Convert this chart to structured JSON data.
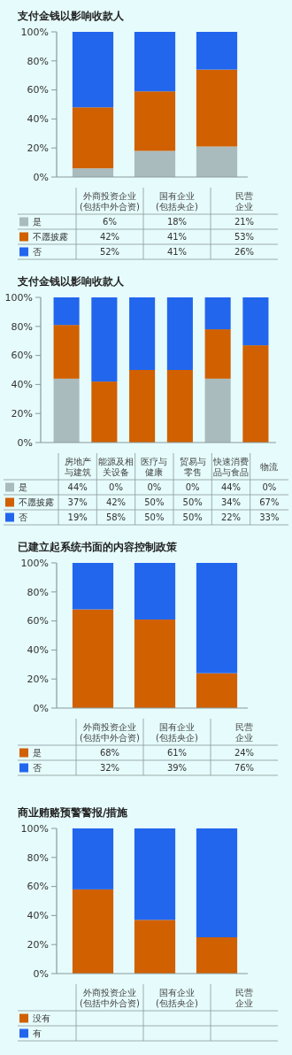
{
  "chart_data": [
    {
      "type": "bar",
      "stacked": true,
      "title": "支付金钱以影响收款人",
      "categories": [
        "外商投资企业\n(包括中外合资)",
        "国有企业\n(包括央企)",
        "民营企业"
      ],
      "ylim": [
        0,
        100
      ],
      "yticks": [
        {
          "value": 0,
          "label": "0%"
        },
        {
          "value": 20,
          "label": "20%"
        },
        {
          "value": 40,
          "label": "40%"
        },
        {
          "value": 60,
          "label": "60%"
        },
        {
          "value": 80,
          "label": "80%"
        },
        {
          "value": 100,
          "label": "100%"
        }
      ],
      "legend": "bottom",
      "series": [
        {
          "name": "是",
          "color": "#aabbbe",
          "values": [
            6,
            18,
            21
          ],
          "value_labels": [
            "6%",
            "18%",
            "21%"
          ]
        },
        {
          "name": "不愿披露",
          "color": "#d06000",
          "values": [
            42,
            41,
            53
          ],
          "value_labels": [
            "42%",
            "41%",
            "53%"
          ]
        },
        {
          "name": "否",
          "color": "#2266ee",
          "values": [
            52,
            41,
            26
          ],
          "value_labels": [
            "52%",
            "41%",
            "26%"
          ]
        }
      ]
    },
    {
      "type": "bar",
      "stacked": true,
      "title": "支付金钱以影响收款人",
      "categories": [
        "房地产与建筑",
        "能源及相关设备",
        "医疗与健康",
        "贸易与零售",
        "快速消费品与食品",
        "物流"
      ],
      "ylim": [
        0,
        100
      ],
      "yticks": [
        {
          "value": 0,
          "label": "0%"
        },
        {
          "value": 20,
          "label": "20%"
        },
        {
          "value": 40,
          "label": "40%"
        },
        {
          "value": 60,
          "label": "60%"
        },
        {
          "value": 80,
          "label": "80%"
        },
        {
          "value": 100,
          "label": "100%"
        }
      ],
      "legend": "bottom",
      "series": [
        {
          "name": "是",
          "color": "#aabbbe",
          "values": [
            44,
            0,
            0,
            0,
            44,
            0
          ],
          "value_labels": [
            "44%",
            "0%",
            "0%",
            "0%",
            "44%",
            "0%"
          ]
        },
        {
          "name": "不愿披露",
          "color": "#d06000",
          "values": [
            37,
            42,
            50,
            50,
            34,
            67
          ],
          "value_labels": [
            "37%",
            "42%",
            "50%",
            "50%",
            "34%",
            "67%"
          ]
        },
        {
          "name": "否",
          "color": "#2266ee",
          "values": [
            19,
            58,
            50,
            50,
            22,
            33
          ],
          "value_labels": [
            "19%",
            "58%",
            "50%",
            "50%",
            "22%",
            "33%"
          ]
        }
      ]
    },
    {
      "type": "bar",
      "stacked": true,
      "title": "已建立起系统书面的内容控制政策",
      "categories": [
        "外商投资企业\n(包括中外合资)",
        "国有企业\n(包括央企)",
        "民营企业"
      ],
      "ylim": [
        0,
        100
      ],
      "yticks": [
        {
          "value": 0,
          "label": "0%"
        },
        {
          "value": 20,
          "label": "20%"
        },
        {
          "value": 40,
          "label": "40%"
        },
        {
          "value": 60,
          "label": "60%"
        },
        {
          "value": 80,
          "label": "80%"
        },
        {
          "value": 100,
          "label": "100%"
        }
      ],
      "legend": "bottom",
      "series": [
        {
          "name": "是",
          "color": "#d06000",
          "values": [
            68,
            61,
            24
          ],
          "value_labels": [
            "68%",
            "61%",
            "24%"
          ]
        },
        {
          "name": "否",
          "color": "#2266ee",
          "values": [
            32,
            39,
            76
          ],
          "value_labels": [
            "32%",
            "39%",
            "76%"
          ]
        }
      ]
    },
    {
      "type": "bar",
      "stacked": true,
      "title": "商业贿赂预警警报/措施",
      "categories": [
        "外商投资企业\n(包括中外合资)",
        "国有企业\n(包括央企)",
        "民营企业"
      ],
      "ylim": [
        0,
        100
      ],
      "yticks": [
        {
          "value": 0,
          "label": "0%"
        },
        {
          "value": 20,
          "label": "20%"
        },
        {
          "value": 40,
          "label": "40%"
        },
        {
          "value": 60,
          "label": "60%"
        },
        {
          "value": 80,
          "label": "80%"
        },
        {
          "value": 100,
          "label": "100%"
        }
      ],
      "legend": "bottom",
      "series": [
        {
          "name": "没有",
          "color": "#d06000",
          "values": [
            58,
            37,
            25
          ]
        },
        {
          "name": "有",
          "color": "#2266ee",
          "values": [
            42,
            63,
            75
          ]
        }
      ]
    }
  ]
}
